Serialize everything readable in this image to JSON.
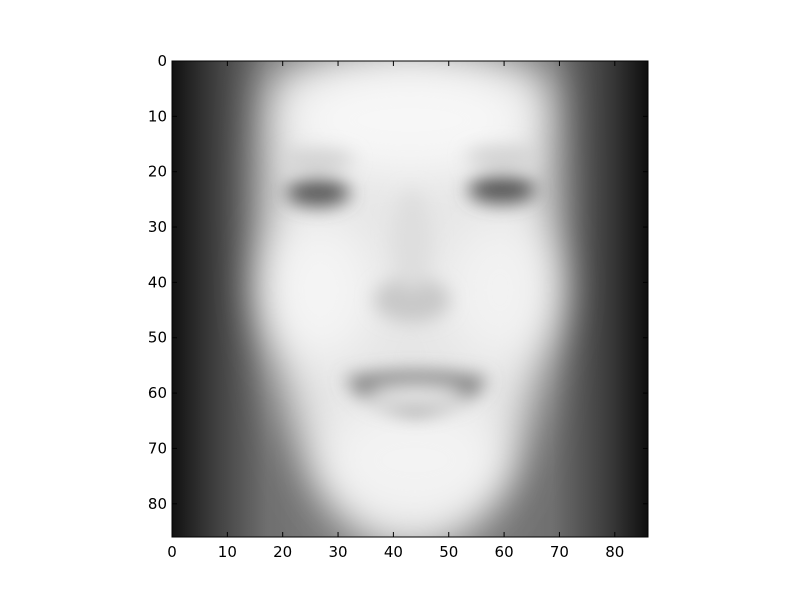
{
  "chart_data": {
    "type": "heatmap",
    "title": "",
    "xlabel": "",
    "ylabel": "",
    "image_shape": [
      86,
      86
    ],
    "colormap": "gray",
    "xlim": [
      0,
      86
    ],
    "ylim": [
      86,
      0
    ],
    "x_ticks": [
      0,
      10,
      20,
      30,
      40,
      50,
      60,
      70,
      80
    ],
    "y_ticks": [
      0,
      10,
      20,
      30,
      40,
      50,
      60,
      70,
      80
    ],
    "x_tick_labels": [
      "0",
      "10",
      "20",
      "30",
      "40",
      "50",
      "60",
      "70",
      "80"
    ],
    "y_tick_labels": [
      "0",
      "10",
      "20",
      "30",
      "40",
      "50",
      "60",
      "70",
      "80"
    ],
    "content_description_hidden": "blurred mean face image",
    "features": {
      "left_eye_center": [
        27,
        24
      ],
      "right_eye_center": [
        60,
        24
      ],
      "nose_center": [
        44,
        40
      ],
      "mouth_center": [
        45,
        60
      ],
      "face_center": [
        44,
        45
      ]
    }
  }
}
